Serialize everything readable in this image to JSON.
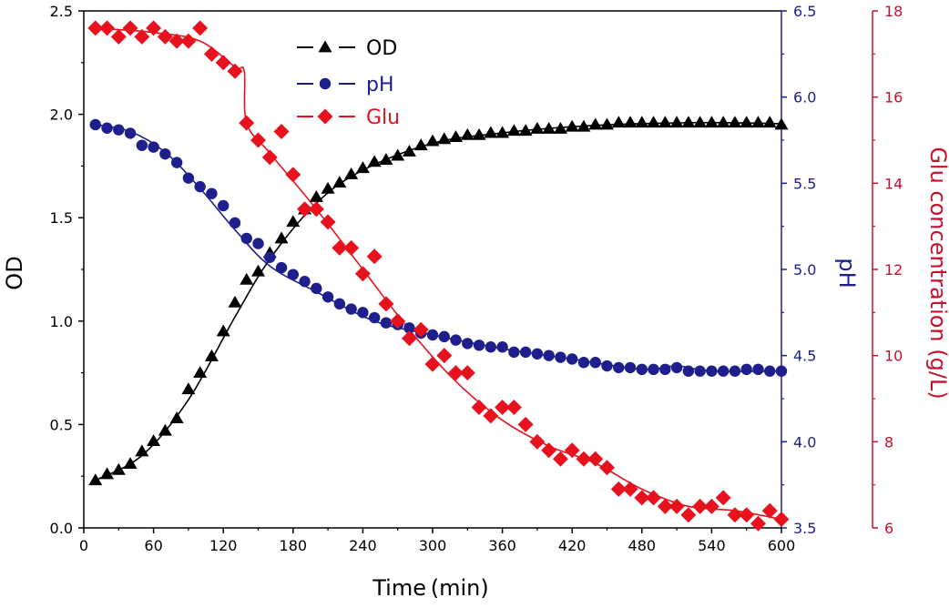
{
  "chart_data": {
    "type": "scatter",
    "title": "",
    "xlabel": "Time (min)",
    "ylabel_left": "OD",
    "ylabel_right1": "pH",
    "ylabel_right2": "Glu concentration (g/L)",
    "grid": false,
    "legend_position": "top-left",
    "x_axis": {
      "min": 0,
      "max": 600,
      "ticks": [
        "0",
        "60",
        "120",
        "180",
        "240",
        "300",
        "360",
        "420",
        "480",
        "540",
        "600"
      ]
    },
    "y_left": {
      "min": 0,
      "max": 2.5,
      "ticks": [
        "0.0",
        "0.5",
        "1.0",
        "1.5",
        "2.0",
        "2.5"
      ]
    },
    "y_right1": {
      "min": 3.5,
      "max": 6.5,
      "ticks": [
        "3.5",
        "4.0",
        "4.5",
        "5.0",
        "5.5",
        "6.0",
        "6.5"
      ]
    },
    "y_right2": {
      "min": 6,
      "max": 18,
      "ticks": [
        "6",
        "8",
        "10",
        "12",
        "14",
        "16",
        "18"
      ]
    },
    "colors": {
      "od": "#000000",
      "ph": "#1e1e8c",
      "glu": "#e8121f",
      "glu_axis": "#c8102e",
      "ph_axis": "#1e1e8c"
    },
    "series": [
      {
        "name": "OD",
        "axis": "left",
        "marker": "triangle",
        "color": "#000000",
        "x": [
          10,
          20,
          30,
          40,
          50,
          60,
          70,
          80,
          90,
          100,
          110,
          120,
          130,
          140,
          150,
          160,
          170,
          180,
          190,
          200,
          210,
          220,
          230,
          240,
          250,
          260,
          270,
          280,
          290,
          300,
          310,
          320,
          330,
          340,
          350,
          360,
          370,
          380,
          390,
          400,
          410,
          420,
          430,
          440,
          450,
          460,
          470,
          480,
          490,
          500,
          510,
          520,
          530,
          540,
          550,
          560,
          570,
          580,
          590,
          600
        ],
        "values": [
          0.23,
          0.26,
          0.28,
          0.31,
          0.37,
          0.42,
          0.47,
          0.53,
          0.67,
          0.75,
          0.83,
          0.95,
          1.09,
          1.2,
          1.24,
          1.33,
          1.4,
          1.48,
          1.54,
          1.6,
          1.64,
          1.67,
          1.71,
          1.74,
          1.77,
          1.78,
          1.8,
          1.82,
          1.85,
          1.87,
          1.88,
          1.89,
          1.9,
          1.9,
          1.91,
          1.91,
          1.92,
          1.92,
          1.93,
          1.93,
          1.93,
          1.94,
          1.94,
          1.95,
          1.95,
          1.96,
          1.96,
          1.96,
          1.96,
          1.96,
          1.96,
          1.96,
          1.96,
          1.96,
          1.96,
          1.96,
          1.96,
          1.96,
          1.96,
          1.95
        ],
        "fit_x": [
          10,
          50,
          90,
          130,
          160,
          200,
          240,
          300,
          360,
          420,
          480,
          540,
          600
        ],
        "fit_y": [
          0.23,
          0.35,
          0.62,
          1.02,
          1.3,
          1.57,
          1.73,
          1.86,
          1.91,
          1.94,
          1.955,
          1.96,
          1.955
        ]
      },
      {
        "name": "pH",
        "axis": "right1",
        "marker": "circle",
        "color": "#1e1e8c",
        "x": [
          10,
          20,
          30,
          40,
          50,
          60,
          70,
          80,
          90,
          100,
          110,
          120,
          130,
          140,
          150,
          160,
          170,
          180,
          190,
          200,
          210,
          220,
          230,
          240,
          250,
          260,
          270,
          280,
          290,
          300,
          310,
          320,
          330,
          340,
          350,
          360,
          370,
          380,
          390,
          400,
          410,
          420,
          430,
          440,
          450,
          460,
          470,
          480,
          490,
          500,
          510,
          520,
          530,
          540,
          550,
          560,
          570,
          580,
          590,
          600
        ],
        "values": [
          5.84,
          5.82,
          5.81,
          5.79,
          5.72,
          5.71,
          5.67,
          5.62,
          5.53,
          5.48,
          5.44,
          5.37,
          5.27,
          5.18,
          5.15,
          5.07,
          5.01,
          4.97,
          4.93,
          4.89,
          4.84,
          4.8,
          4.77,
          4.75,
          4.72,
          4.69,
          4.68,
          4.66,
          4.63,
          4.62,
          4.61,
          4.59,
          4.57,
          4.56,
          4.55,
          4.55,
          4.52,
          4.52,
          4.51,
          4.5,
          4.49,
          4.48,
          4.46,
          4.46,
          4.44,
          4.43,
          4.43,
          4.42,
          4.42,
          4.42,
          4.43,
          4.41,
          4.41,
          4.41,
          4.41,
          4.41,
          4.42,
          4.42,
          4.41,
          4.41
        ],
        "fit_x": [
          10,
          40,
          70,
          100,
          130,
          160,
          200,
          250,
          300,
          360,
          420,
          480,
          510,
          540,
          600
        ],
        "fit_y": [
          5.84,
          5.8,
          5.68,
          5.47,
          5.23,
          5.02,
          4.87,
          4.7,
          4.62,
          4.54,
          4.48,
          4.42,
          4.44,
          4.41,
          4.41
        ]
      },
      {
        "name": "Glu",
        "axis": "right2",
        "marker": "diamond",
        "color": "#e8121f",
        "x": [
          10,
          20,
          30,
          40,
          50,
          60,
          70,
          80,
          90,
          100,
          110,
          120,
          130,
          140,
          150,
          160,
          170,
          180,
          190,
          200,
          210,
          220,
          230,
          240,
          250,
          260,
          270,
          280,
          290,
          300,
          310,
          320,
          330,
          340,
          350,
          360,
          370,
          380,
          390,
          400,
          410,
          420,
          430,
          440,
          450,
          460,
          470,
          480,
          490,
          500,
          510,
          520,
          530,
          540,
          550,
          560,
          570,
          580,
          590,
          600
        ],
        "values": [
          17.6,
          17.6,
          17.4,
          17.6,
          17.4,
          17.6,
          17.4,
          17.3,
          17.3,
          17.6,
          17.0,
          16.8,
          16.6,
          15.4,
          15.0,
          14.6,
          15.2,
          14.2,
          13.4,
          13.4,
          13.1,
          12.5,
          12.5,
          11.9,
          12.3,
          11.2,
          10.8,
          10.4,
          10.6,
          9.8,
          10.0,
          9.6,
          9.6,
          8.8,
          8.6,
          8.8,
          8.8,
          8.4,
          8.0,
          7.8,
          7.6,
          7.8,
          7.6,
          7.6,
          7.4,
          6.9,
          6.9,
          6.7,
          6.7,
          6.5,
          6.5,
          6.3,
          6.5,
          6.5,
          6.7,
          6.3,
          6.3,
          6.1,
          6.4,
          6.2
        ],
        "fit_x": [
          10,
          60,
          100,
          130,
          138,
          140,
          160,
          200,
          240,
          280,
          320,
          360,
          400,
          440,
          480,
          520,
          560,
          600
        ],
        "fit_y": [
          17.6,
          17.5,
          17.3,
          16.7,
          16.6,
          15.4,
          14.7,
          13.4,
          12.0,
          10.6,
          9.4,
          8.5,
          7.9,
          7.5,
          6.9,
          6.5,
          6.4,
          6.2
        ]
      }
    ]
  }
}
